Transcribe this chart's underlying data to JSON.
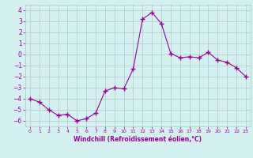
{
  "xlabel": "Windchill (Refroidissement éolien,°C)",
  "x": [
    0,
    1,
    2,
    3,
    4,
    5,
    6,
    7,
    8,
    9,
    10,
    11,
    12,
    13,
    14,
    15,
    16,
    17,
    18,
    19,
    20,
    21,
    22,
    23
  ],
  "y": [
    -4.0,
    -4.3,
    -5.0,
    -5.5,
    -5.4,
    -6.0,
    -5.8,
    -5.3,
    -3.3,
    -3.0,
    -3.1,
    -1.3,
    3.2,
    3.8,
    2.8,
    0.1,
    -0.3,
    -0.2,
    -0.3,
    0.2,
    -0.5,
    -0.7,
    -1.2,
    -2.0
  ],
  "line_color": "#990099",
  "marker_color": "#990099",
  "bg_color": "#d4f0f0",
  "grid_color": "#b0c8c8",
  "ylim": [
    -6.5,
    4.5
  ],
  "xlim": [
    -0.5,
    23.5
  ],
  "yticks": [
    -6,
    -5,
    -4,
    -3,
    -2,
    -1,
    0,
    1,
    2,
    3,
    4
  ],
  "xticks": [
    0,
    1,
    2,
    3,
    4,
    5,
    6,
    7,
    8,
    9,
    10,
    11,
    12,
    13,
    14,
    15,
    16,
    17,
    18,
    19,
    20,
    21,
    22,
    23
  ],
  "tick_color": "#990099",
  "label_color": "#990099",
  "figsize": [
    3.2,
    2.0
  ],
  "dpi": 100
}
